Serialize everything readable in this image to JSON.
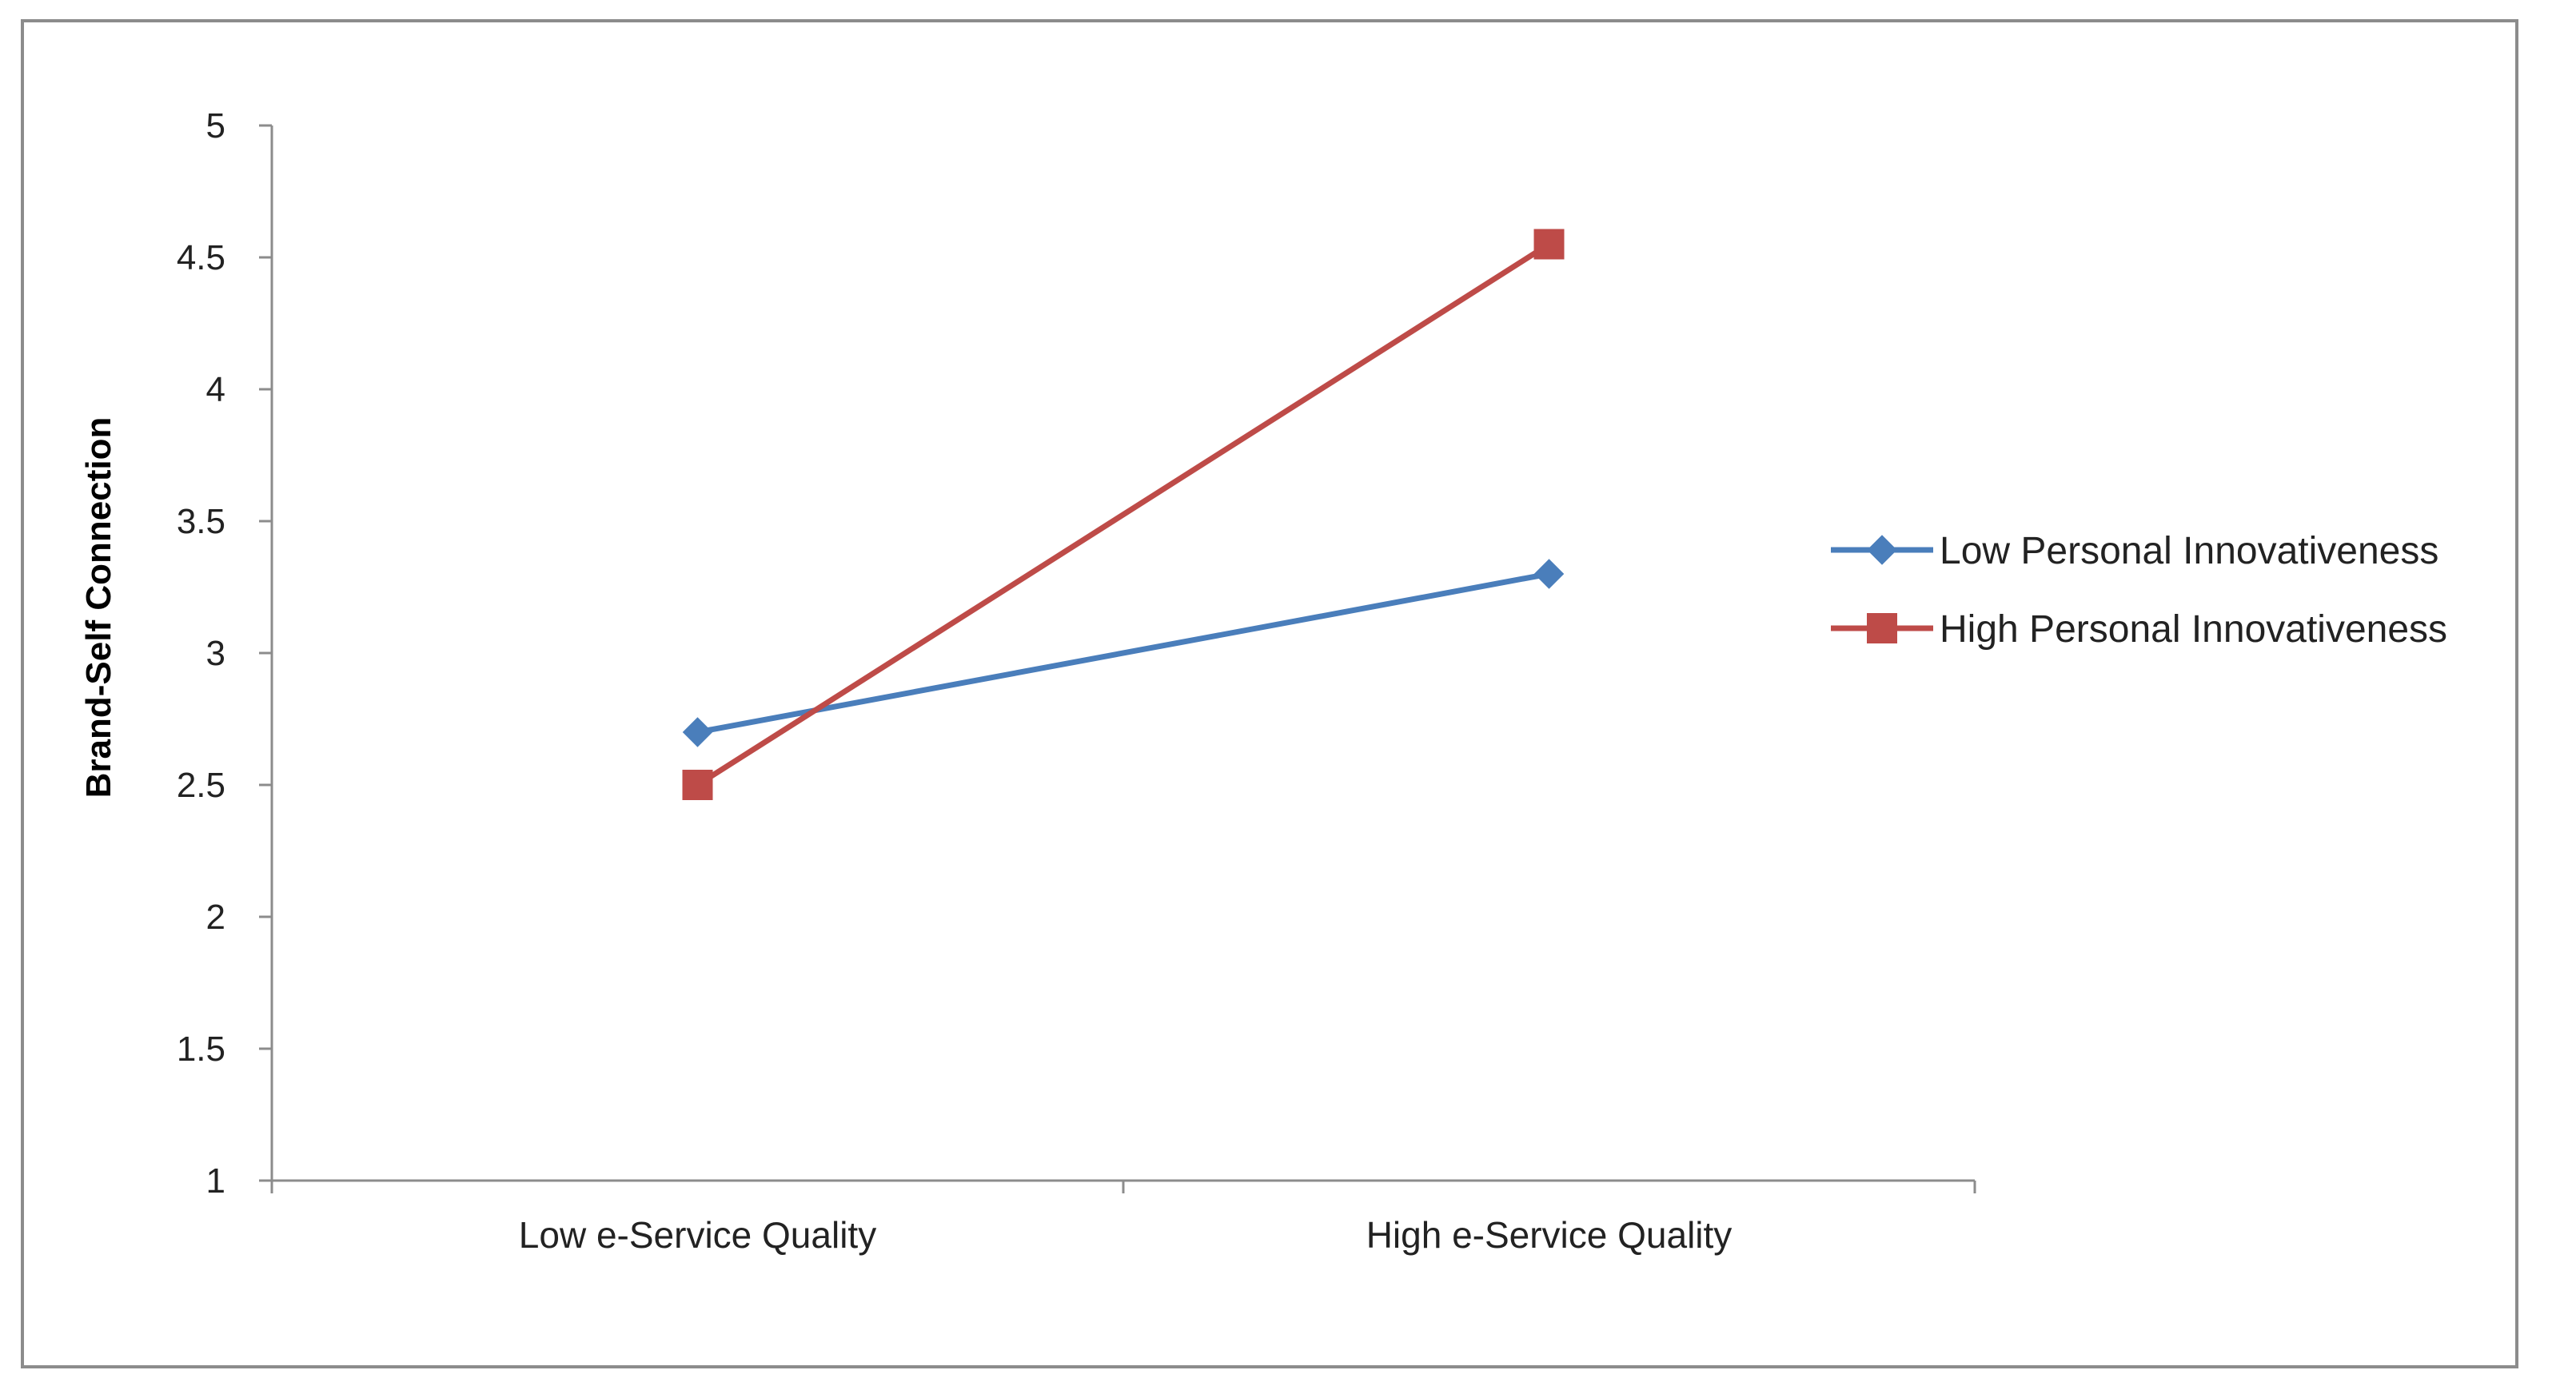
{
  "chart_data": {
    "type": "line",
    "title": "",
    "xlabel": "",
    "ylabel": "Brand-Self Connection",
    "categories": [
      "Low e-Service Quality",
      "High e-Service Quality"
    ],
    "ylim": [
      1,
      5
    ],
    "yticks": [
      "1",
      "1.5",
      "2",
      "2.5",
      "3",
      "3.5",
      "4",
      "4.5",
      "5"
    ],
    "grid": false,
    "legend_position": "right",
    "series": [
      {
        "name": "Low Personal Innovativeness",
        "values": [
          2.7,
          3.3
        ],
        "color": "#4a7ebb",
        "marker": "diamond"
      },
      {
        "name": "High Personal Innovativeness",
        "values": [
          2.5,
          4.55
        ],
        "color": "#be4b48",
        "marker": "square"
      }
    ]
  }
}
